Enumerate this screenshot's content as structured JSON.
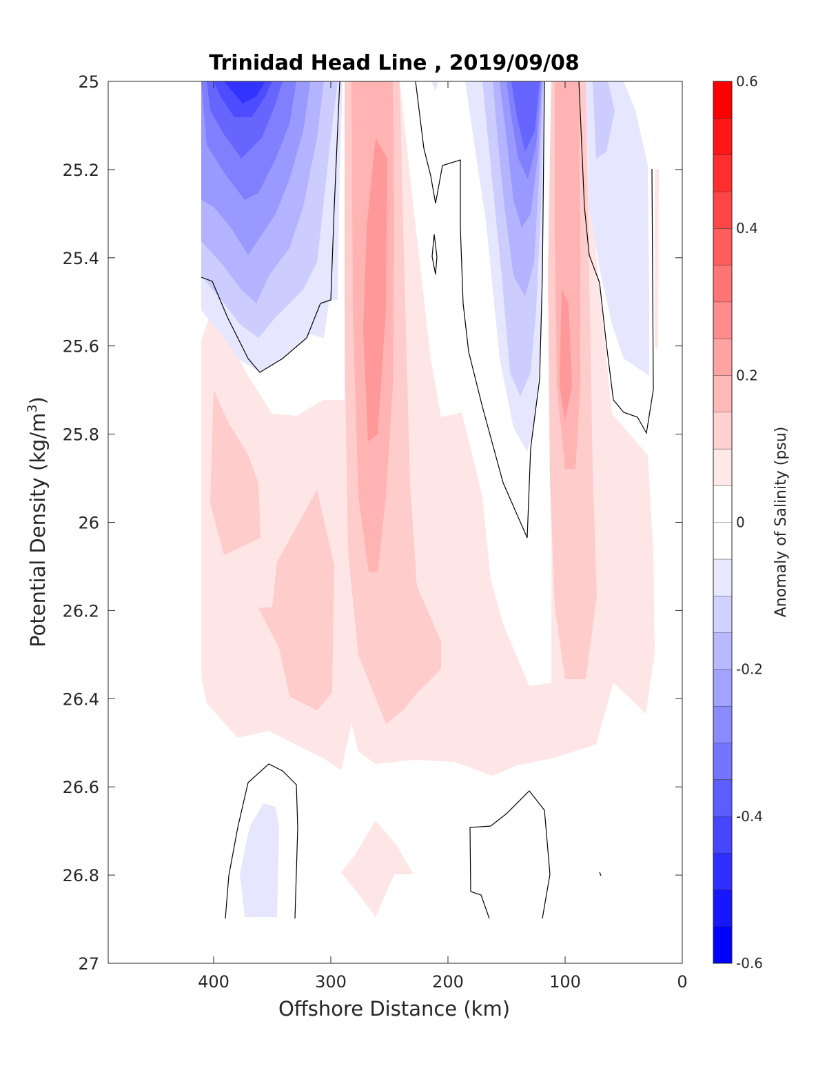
{
  "chart_data": {
    "type": "heatmap",
    "subtype": "filled-contour section",
    "title": "Trinidad Head Line , 2019/09/08",
    "xlabel": "Offshore Distance (km)",
    "ylabel": "Potential Density (kg/m",
    "ylabel_sup": "3",
    "ylabel_close": ")",
    "colorbar_label": "Anomaly of Salinity (psu)",
    "x_reversed": true,
    "y_reversed": true,
    "xlim": [
      0,
      490
    ],
    "ylim": [
      25,
      27
    ],
    "x_ticks": [
      400,
      300,
      200,
      100,
      0
    ],
    "x_tick_labels": [
      "400",
      "300",
      "200",
      "100",
      "0"
    ],
    "y_ticks": [
      25,
      25.2,
      25.4,
      25.6,
      25.8,
      26,
      26.2,
      26.4,
      26.6,
      26.8,
      27
    ],
    "y_tick_labels": [
      "25",
      "25.2",
      "25.4",
      "25.6",
      "25.8",
      "26",
      "26.2",
      "26.4",
      "26.6",
      "26.8",
      "27"
    ],
    "colorbar_range": [
      -0.6,
      0.6
    ],
    "colorbar_ticks": [
      0.6,
      0.4,
      0.2,
      0,
      -0.2,
      -0.4,
      -0.6
    ],
    "colorbar_tick_labels": [
      "0.6",
      "0.4",
      "0.2",
      "0",
      "-0.2",
      "-0.4",
      "-0.6"
    ],
    "contour_step": 0.05,
    "colormap": "blue-white-red diverging",
    "colors": {
      "min": "#0000ff",
      "zero": "#ffffff",
      "max": "#ff0000",
      "zero_contour": "#000000"
    },
    "grid": false,
    "features": [
      {
        "kind": "negative",
        "x": [
          290,
          410
        ],
        "y": [
          25,
          25.6
        ],
        "min_anomaly": -0.45
      },
      {
        "kind": "negative",
        "x": [
          120,
          180
        ],
        "y": [
          25,
          25.85
        ],
        "min_anomaly": -0.35
      },
      {
        "kind": "negative",
        "x": [
          30,
          90
        ],
        "y": [
          25,
          25.7
        ],
        "min_anomaly": -0.15
      },
      {
        "kind": "positive",
        "x": [
          220,
          290
        ],
        "y": [
          25,
          26.45
        ],
        "max_anomaly": 0.25
      },
      {
        "kind": "positive",
        "x": [
          70,
          115
        ],
        "y": [
          25,
          26.35
        ],
        "max_anomaly": 0.25
      },
      {
        "kind": "positive",
        "x": [
          25,
          410
        ],
        "y": [
          25.6,
          26.55
        ],
        "max_anomaly": 0.15
      },
      {
        "kind": "negative",
        "x": [
          350,
          375
        ],
        "y": [
          26.65,
          26.9
        ],
        "min_anomaly": -0.1
      },
      {
        "kind": "positive",
        "x": [
          230,
          290
        ],
        "y": [
          26.7,
          26.9
        ],
        "max_anomaly": 0.1
      }
    ]
  }
}
